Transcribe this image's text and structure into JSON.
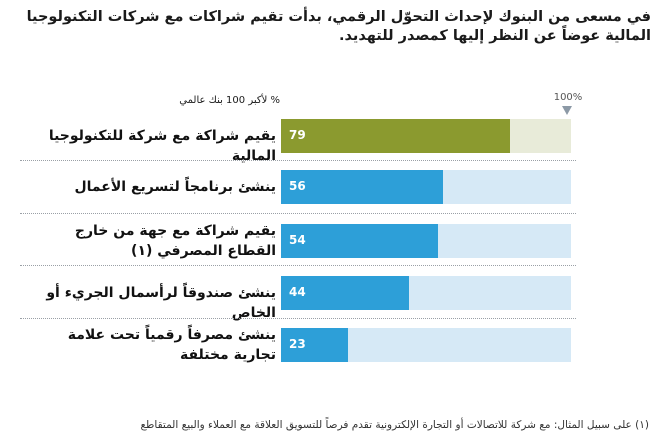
{
  "chart_data": {
    "type": "bar",
    "orientation": "horizontal",
    "title": "في مسعى من البنوك لإحداث التحوّل الرقمي، بدأت تقيم شراكات مع شركات التكنولوجيا المالية عوضاً عن النظر إليها كمصدر للتهديد.",
    "axis_label": "% لأكبر 100 بنك عالمي",
    "max_label": "100%",
    "xlim": [
      0,
      100
    ],
    "categories": [
      "يقيم شراكة مع شركة للتكنولوجيا المالية",
      "ينشئ برنامجاً لتسريع الأعمال",
      "يقيم شراكة مع جهة من خارج القطاع المصرفي (١)",
      "ينشئ صندوقاً لرأسمال الجريء أو الخاص",
      "ينشئ مصرفاً رقمياً تحت علامة تجارية مختلفة"
    ],
    "values": [
      79,
      56,
      54,
      44,
      23
    ],
    "colors": {
      "highlight_fill": "#8b9a2f",
      "highlight_track": "#e8ebd9",
      "fill": "#2d9fd8",
      "track": "#d6e9f6"
    },
    "footnote": "(١) على سبيل المثال: مع شركة للاتصالات أو التجارة الإلكترونية تقدم فرصاً للتسويق العلاقة مع العملاء والبيع المتقاطع"
  }
}
